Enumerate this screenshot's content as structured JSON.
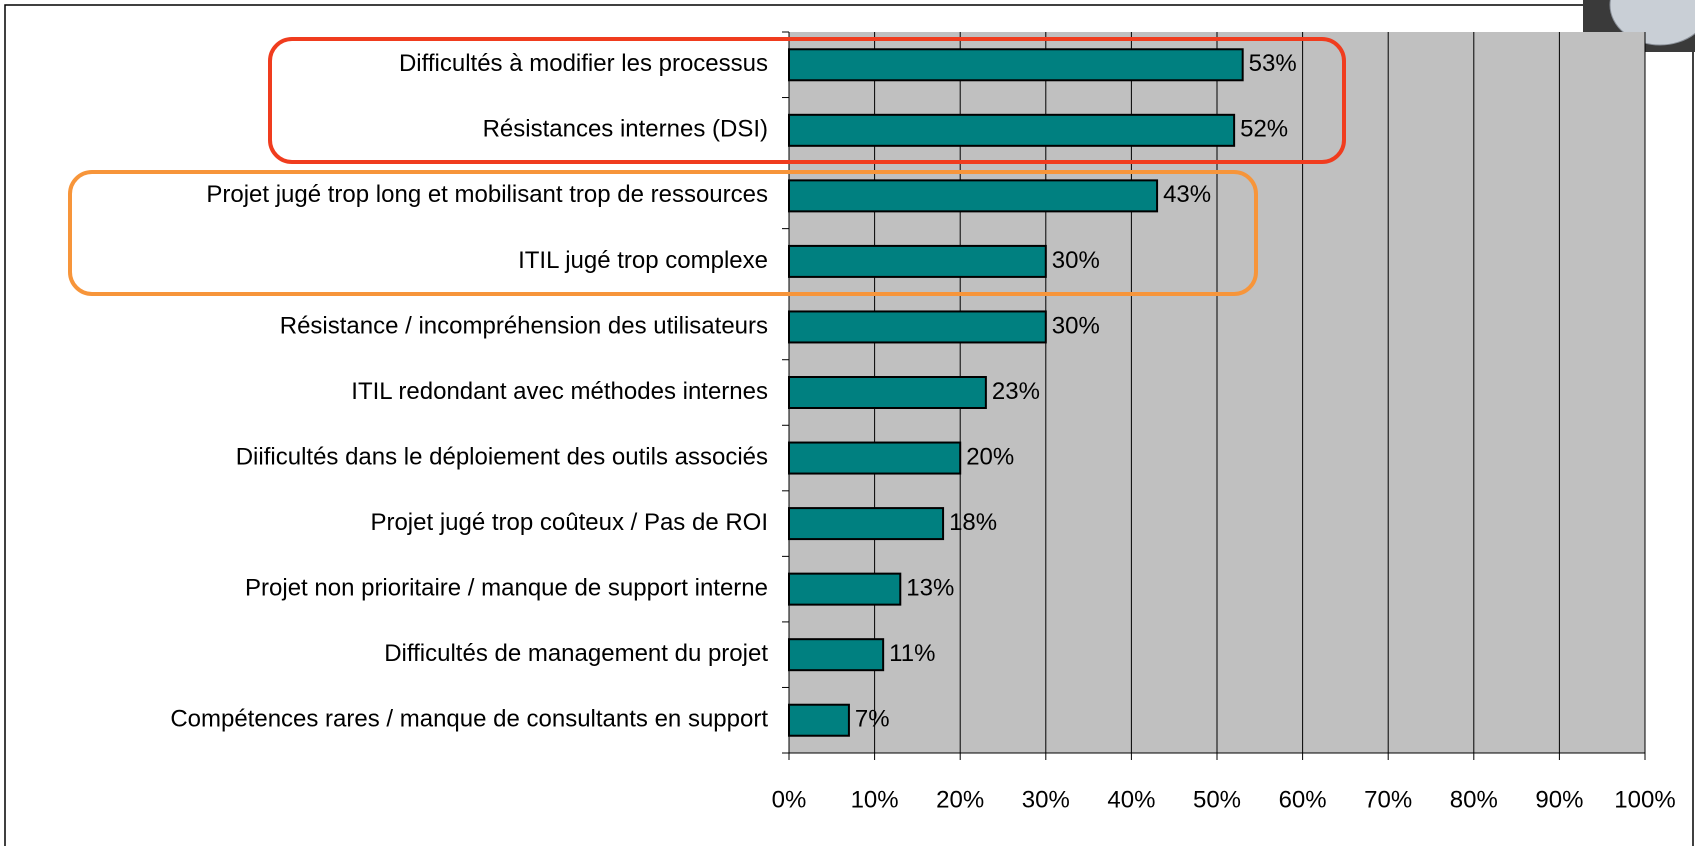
{
  "chart_data": {
    "type": "bar",
    "orientation": "horizontal",
    "categories": [
      "Difficultés à modifier les processus",
      "Résistances internes (DSI)",
      "Projet jugé trop long et mobilisant trop de ressources",
      "ITIL jugé trop complexe",
      "Résistance / incompréhension des utilisateurs",
      "ITIL redondant avec méthodes internes",
      "Diificultés dans le déploiement des outils associés",
      "Projet jugé trop coûteux / Pas de ROI",
      "Projet non prioritaire / manque de support interne",
      "Difficultés de management du projet",
      "Compétences rares / manque de consultants en support"
    ],
    "values": [
      53,
      52,
      43,
      30,
      30,
      23,
      20,
      18,
      13,
      11,
      7
    ],
    "value_labels": [
      "53%",
      "52%",
      "43%",
      "30%",
      "30%",
      "23%",
      "20%",
      "18%",
      "13%",
      "11%",
      "7%"
    ],
    "color": "#008080",
    "xlim": [
      0,
      100
    ],
    "xticks": [
      {
        "value": 0,
        "label": "0%"
      },
      {
        "value": 10,
        "label": "10%"
      },
      {
        "value": 20,
        "label": "20%"
      },
      {
        "value": 30,
        "label": "30%"
      },
      {
        "value": 40,
        "label": "40%"
      },
      {
        "value": 50,
        "label": "50%"
      },
      {
        "value": 60,
        "label": "60%"
      },
      {
        "value": 70,
        "label": "70%"
      },
      {
        "value": 80,
        "label": "80%"
      },
      {
        "value": 90,
        "label": "90%"
      },
      {
        "value": 100,
        "label": "100%"
      }
    ],
    "grid": true
  }
}
